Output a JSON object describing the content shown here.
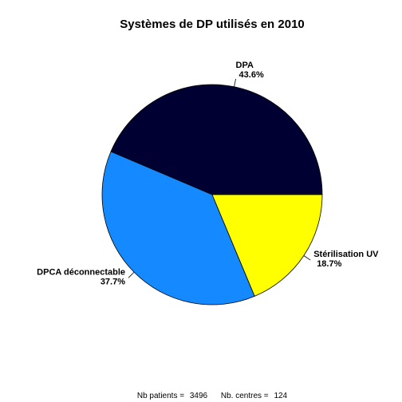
{
  "chart_data": {
    "type": "pie",
    "title": "Systèmes de DP utilisés en 2010",
    "start": "right (3 o'clock)",
    "direction": "counter-clockwise",
    "slices": [
      {
        "label": "DPA",
        "percent_label": "43.6%",
        "value": 43.6,
        "color": "#000033"
      },
      {
        "label": "DPCA déconnectable",
        "percent_label": "37.7%",
        "value": 37.7,
        "color": "#1589FF"
      },
      {
        "label": "Stérilisation UV",
        "percent_label": "18.7%",
        "value": 18.7,
        "color": "#FFFF00"
      }
    ]
  },
  "footer": {
    "patients_label": "Nb patients =",
    "patients_value": "3496",
    "centres_label": "Nb. centres =",
    "centres_value": "124"
  }
}
